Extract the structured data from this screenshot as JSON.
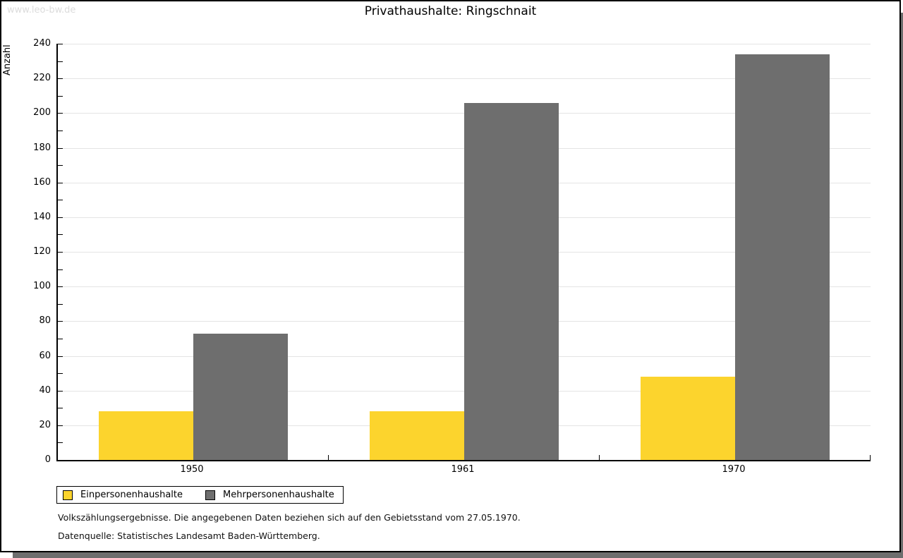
{
  "watermark": "www.leo-bw.de",
  "chart_data": {
    "type": "bar",
    "title": "Privathaushalte: Ringschnait",
    "ylabel": "Anzahl",
    "xlabel": "",
    "categories": [
      "1950",
      "1961",
      "1970"
    ],
    "series": [
      {
        "name": "Einpersonenhaushalte",
        "color": "#FCD42D",
        "values": [
          28,
          28,
          48
        ]
      },
      {
        "name": "Mehrpersonenhaushalte",
        "color": "#6E6E6E",
        "values": [
          73,
          206,
          234
        ]
      }
    ],
    "ylim": [
      0,
      240
    ],
    "ytick_step": 20,
    "yminor_step": 10,
    "grid": true,
    "gridline_color": "#E4E4E4",
    "legend_position": "bottom-left"
  },
  "footnotes": {
    "line1": "Volkszählungsergebnisse. Die angegebenen Daten beziehen sich auf den Gebietsstand vom 27.05.1970.",
    "line2": "Datenquelle: Statistisches Landesamt Baden-Württemberg."
  },
  "colors": {
    "panel_border": "#000000",
    "shadow": "#6E6E6E",
    "watermark": "#DCDCDC",
    "axis": "#000000"
  }
}
